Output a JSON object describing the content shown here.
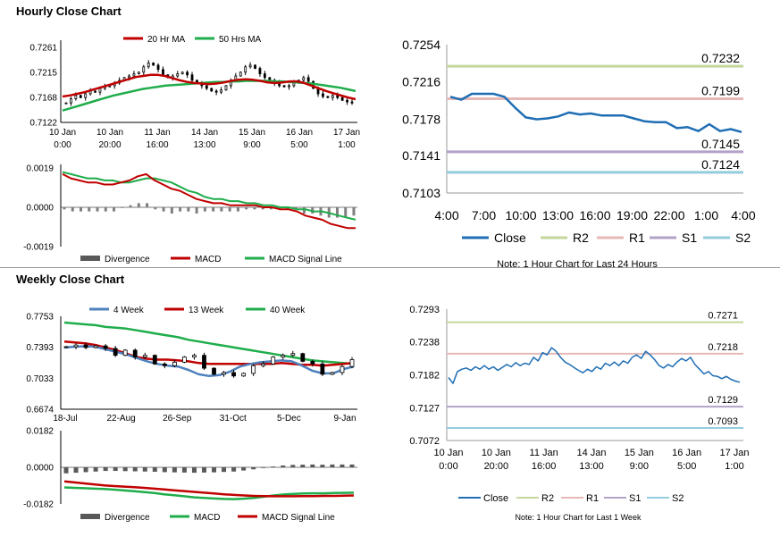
{
  "hourly": {
    "title": "Hourly Close Chart",
    "price_legend": [
      "20 Hr MA",
      "50 Hrs MA"
    ],
    "macd_legend": [
      "Divergence",
      "MACD",
      "MACD Signal Line"
    ],
    "macd_colors": [
      "#595959",
      "#c00000",
      "#1fad4b"
    ]
  },
  "weekly": {
    "title": "Weekly Close Chart",
    "price_legend": [
      "4 Week",
      "13 Week",
      "40 Week"
    ],
    "macd_legend": [
      "Divergence",
      "MACD",
      "MACD Signal Line"
    ],
    "macd_colors": [
      "#595959",
      "#1fad4b",
      "#c00000"
    ]
  },
  "colors": {
    "ma_red": "#c00000",
    "ma_green": "#1fad4b",
    "ma_blue": "#4f81bd",
    "close": "#1f6eb4",
    "r2": "#c3d69b",
    "r1": "#e6b9b8",
    "s1": "#b3a2c7",
    "s2": "#93cddd"
  },
  "chart_data": [
    {
      "id": "hourly_price",
      "type": "candlestick",
      "x_tick_labels": [
        [
          "10 Jan",
          "0:00"
        ],
        [
          "10 Jan",
          "20:00"
        ],
        [
          "11 Jan",
          "16:00"
        ],
        [
          "14 Jan",
          "13:00"
        ],
        [
          "15 Jan",
          "9:00"
        ],
        [
          "16 Jan",
          "5:00"
        ],
        [
          "17 Jan",
          "1:00"
        ]
      ],
      "y_ticks": [
        "0.7261",
        "0.7215",
        "0.7168",
        "0.7122"
      ],
      "ylim": [
        0.7122,
        0.7261
      ],
      "close": [
        0.7158,
        0.7166,
        0.7172,
        0.7168,
        0.7175,
        0.718,
        0.7178,
        0.7185,
        0.7188,
        0.719,
        0.7195,
        0.72,
        0.7205,
        0.7208,
        0.7212,
        0.7215,
        0.7225,
        0.7232,
        0.7228,
        0.722,
        0.721,
        0.7205,
        0.7208,
        0.7212,
        0.7215,
        0.721,
        0.72,
        0.7195,
        0.719,
        0.7185,
        0.718,
        0.7178,
        0.7182,
        0.719,
        0.72,
        0.7208,
        0.7215,
        0.7225,
        0.7228,
        0.7222,
        0.7212,
        0.7205,
        0.72,
        0.7195,
        0.719,
        0.7188,
        0.719,
        0.7195,
        0.72,
        0.7205,
        0.7198,
        0.7185,
        0.7175,
        0.717,
        0.7168,
        0.7172,
        0.7168,
        0.7163,
        0.716,
        0.7158
      ],
      "ma20": [
        0.717,
        0.7172,
        0.7175,
        0.7178,
        0.7182,
        0.7186,
        0.719,
        0.7194,
        0.7198,
        0.7202,
        0.7206,
        0.7208,
        0.721,
        0.721,
        0.7208,
        0.7204,
        0.72,
        0.7197,
        0.7195,
        0.7194,
        0.7193,
        0.7194,
        0.7196,
        0.7199,
        0.7201,
        0.7202,
        0.7201,
        0.7199,
        0.7196,
        0.7195,
        0.7196,
        0.7198,
        0.7198,
        0.7195,
        0.719,
        0.7185,
        0.718,
        0.7176,
        0.7172,
        0.7168,
        0.7165
      ],
      "ma50": [
        0.7144,
        0.7148,
        0.7152,
        0.7156,
        0.716,
        0.7164,
        0.7168,
        0.7172,
        0.7175,
        0.7178,
        0.7181,
        0.7184,
        0.7186,
        0.7188,
        0.719,
        0.7191,
        0.7192,
        0.7193,
        0.7194,
        0.7195,
        0.7196,
        0.7197,
        0.7197,
        0.7198,
        0.7198,
        0.7199,
        0.7199,
        0.7199,
        0.7199,
        0.7198,
        0.7198,
        0.7197,
        0.7196,
        0.7195,
        0.7194,
        0.7192,
        0.719,
        0.7188,
        0.7186,
        0.7183,
        0.718
      ]
    },
    {
      "id": "hourly_macd",
      "type": "line+bar",
      "y_ticks": [
        "0.0019",
        "0.0000",
        "-0.0019"
      ],
      "ylim": [
        -0.0019,
        0.0019
      ],
      "macd": [
        0.0016,
        0.0014,
        0.0013,
        0.0012,
        0.0012,
        0.0011,
        0.0011,
        0.0012,
        0.0013,
        0.0015,
        0.0016,
        0.0013,
        0.0011,
        0.0009,
        0.0008,
        0.0006,
        0.0004,
        0.0003,
        0.0002,
        0.0002,
        0.0001,
        0.0001,
        0.0001,
        0.0001,
        0.0,
        0.0,
        -0.0001,
        -0.0001,
        -0.0002,
        -0.0004,
        -0.0005,
        -0.0006,
        -0.0008,
        -0.0009,
        -0.001,
        -0.001
      ],
      "signal": [
        0.0017,
        0.0016,
        0.0015,
        0.0014,
        0.0014,
        0.0013,
        0.0013,
        0.0012,
        0.0012,
        0.0013,
        0.0014,
        0.0014,
        0.0013,
        0.0012,
        0.001,
        0.0008,
        0.0007,
        0.0005,
        0.0004,
        0.0004,
        0.0003,
        0.0003,
        0.0002,
        0.0002,
        0.0001,
        0.0001,
        0.0,
        0.0,
        -0.0001,
        -0.0001,
        -0.0002,
        -0.0002,
        -0.0003,
        -0.0004,
        -0.0005,
        -0.0006
      ],
      "divergence": [
        -0.0001,
        -0.0002,
        -0.0002,
        -0.0002,
        -0.0002,
        -0.0002,
        -0.0002,
        0.0,
        0.0001,
        0.0002,
        0.0002,
        -0.0001,
        -0.0002,
        -0.0003,
        -0.0002,
        -0.0002,
        -0.0003,
        -0.0002,
        -0.0002,
        -0.0002,
        -0.0002,
        -0.0002,
        -0.0001,
        -0.0001,
        -0.0001,
        -0.0001,
        -0.0001,
        -0.0001,
        -0.0001,
        -0.0003,
        -0.0003,
        -0.0004,
        -0.0005,
        -0.0005,
        -0.0005,
        -0.0004
      ]
    },
    {
      "id": "hourly_24h",
      "type": "line",
      "x_ticks": [
        "4:00",
        "7:00",
        "10:00",
        "13:00",
        "16:00",
        "19:00",
        "22:00",
        "1:00",
        "4:00"
      ],
      "y_ticks": [
        "0.7254",
        "0.7216",
        "0.7178",
        "0.7141",
        "0.7103"
      ],
      "ylim": [
        0.7103,
        0.7254
      ],
      "legend": [
        "Close",
        "R2",
        "R1",
        "S1",
        "S2"
      ],
      "levels": {
        "R2": "0.7232",
        "R1": "0.7199",
        "S1": "0.7145",
        "S2": "0.7124"
      },
      "close": [
        0.7201,
        0.7198,
        0.7204,
        0.7204,
        0.7204,
        0.7201,
        0.719,
        0.718,
        0.7178,
        0.7179,
        0.7181,
        0.7185,
        0.7183,
        0.7184,
        0.7182,
        0.7182,
        0.7182,
        0.7179,
        0.7176,
        0.7175,
        0.7175,
        0.7169,
        0.717,
        0.7166,
        0.7173,
        0.7166,
        0.7168,
        0.7165
      ],
      "note": "Note: 1 Hour Chart for Last 24 Hours"
    },
    {
      "id": "weekly_price",
      "type": "candlestick",
      "x_ticks": [
        "18-Jul",
        "22-Aug",
        "26-Sep",
        "31-Oct",
        "5-Dec",
        "9-Jan"
      ],
      "y_ticks": [
        "0.7753",
        "0.7393",
        "0.7033",
        "0.6674"
      ],
      "ylim": [
        0.6674,
        0.7753
      ],
      "legend": [
        "4 Week",
        "13 Week",
        "40 Week"
      ],
      "close": [
        0.74,
        0.742,
        0.739,
        0.741,
        0.738,
        0.73,
        0.736,
        0.728,
        0.73,
        0.72,
        0.718,
        0.722,
        0.728,
        0.73,
        0.715,
        0.708,
        0.71,
        0.706,
        0.709,
        0.718,
        0.72,
        0.728,
        0.73,
        0.732,
        0.723,
        0.72,
        0.708,
        0.71,
        0.717,
        0.725
      ],
      "w4": [
        0.739,
        0.74,
        0.7405,
        0.74,
        0.737,
        0.734,
        0.731,
        0.727,
        0.723,
        0.72,
        0.718,
        0.717,
        0.713,
        0.708,
        0.706,
        0.707,
        0.711,
        0.717,
        0.72,
        0.722,
        0.723,
        0.724,
        0.723,
        0.718,
        0.712,
        0.709,
        0.709,
        0.714,
        0.717
      ],
      "w13": [
        0.746,
        0.745,
        0.744,
        0.742,
        0.739,
        0.736,
        0.732,
        0.728,
        0.726,
        0.725,
        0.725,
        0.724,
        0.723,
        0.721,
        0.72,
        0.72,
        0.72,
        0.72,
        0.72,
        0.72,
        0.72,
        0.721,
        0.72,
        0.719,
        0.719,
        0.718,
        0.719,
        0.72,
        0.721
      ],
      "w40": [
        0.768,
        0.767,
        0.766,
        0.765,
        0.763,
        0.762,
        0.761,
        0.759,
        0.757,
        0.755,
        0.753,
        0.751,
        0.748,
        0.746,
        0.744,
        0.742,
        0.74,
        0.738,
        0.736,
        0.734,
        0.732,
        0.73,
        0.728,
        0.726,
        0.724,
        0.723,
        0.722,
        0.721,
        0.72
      ]
    },
    {
      "id": "weekly_macd",
      "type": "line+bar",
      "y_ticks": [
        "0.0182",
        "0.0000",
        "-0.0182"
      ],
      "ylim": [
        -0.0182,
        0.0182
      ],
      "macd": [
        -0.01,
        -0.0102,
        -0.0104,
        -0.0106,
        -0.0108,
        -0.0111,
        -0.0115,
        -0.0119,
        -0.0123,
        -0.0128,
        -0.0134,
        -0.0139,
        -0.0144,
        -0.0149,
        -0.0152,
        -0.0155,
        -0.0157,
        -0.0158,
        -0.0156,
        -0.0152,
        -0.0146,
        -0.014,
        -0.0135,
        -0.0132,
        -0.013,
        -0.0129,
        -0.0129,
        -0.0128,
        -0.0127,
        -0.0126
      ],
      "signal": [
        -0.007,
        -0.0075,
        -0.008,
        -0.0085,
        -0.009,
        -0.0093,
        -0.0096,
        -0.0099,
        -0.0102,
        -0.0106,
        -0.011,
        -0.0114,
        -0.0118,
        -0.0122,
        -0.0126,
        -0.013,
        -0.0134,
        -0.0137,
        -0.014,
        -0.0142,
        -0.0143,
        -0.0144,
        -0.0144,
        -0.0144,
        -0.0143,
        -0.0143,
        -0.0142,
        -0.0142,
        -0.0141,
        -0.014
      ],
      "divergence": [
        -0.003,
        -0.0027,
        -0.0024,
        -0.0021,
        -0.0018,
        -0.0018,
        -0.0019,
        -0.002,
        -0.0021,
        -0.0022,
        -0.0024,
        -0.0025,
        -0.0026,
        -0.0027,
        -0.0026,
        -0.0025,
        -0.0023,
        -0.0021,
        -0.0016,
        -0.001,
        -0.0003,
        0.0004,
        0.0009,
        0.0012,
        0.0013,
        0.0014,
        0.0013,
        0.0014,
        0.0014,
        0.0014
      ]
    },
    {
      "id": "weekly_hourly",
      "type": "line",
      "x_tick_labels": [
        [
          "10 Jan",
          "0:00"
        ],
        [
          "10 Jan",
          "20:00"
        ],
        [
          "11 Jan",
          "16:00"
        ],
        [
          "14 Jan",
          "13:00"
        ],
        [
          "15 Jan",
          "9:00"
        ],
        [
          "16 Jan",
          "5:00"
        ],
        [
          "17 Jan",
          "1:00"
        ]
      ],
      "y_ticks": [
        "0.7293",
        "0.7238",
        "0.7182",
        "0.7127",
        "0.7072"
      ],
      "ylim": [
        0.7072,
        0.7293
      ],
      "legend": [
        "Close",
        "R2",
        "R1",
        "S1",
        "S2"
      ],
      "levels": {
        "R2": "0.7271",
        "R1": "0.7218",
        "S1": "0.7129",
        "S2": "0.7093"
      },
      "close": [
        0.7178,
        0.7168,
        0.7188,
        0.7192,
        0.7194,
        0.719,
        0.7196,
        0.7192,
        0.7198,
        0.7192,
        0.7196,
        0.719,
        0.7195,
        0.72,
        0.7196,
        0.7203,
        0.7198,
        0.7202,
        0.72,
        0.7212,
        0.7206,
        0.722,
        0.7216,
        0.7228,
        0.7222,
        0.7212,
        0.7204,
        0.72,
        0.7195,
        0.719,
        0.7186,
        0.7192,
        0.7188,
        0.7196,
        0.7192,
        0.7202,
        0.7198,
        0.7204,
        0.7198,
        0.7206,
        0.7202,
        0.7212,
        0.7216,
        0.721,
        0.7222,
        0.7216,
        0.7208,
        0.7198,
        0.7194,
        0.72,
        0.7196,
        0.7204,
        0.721,
        0.7206,
        0.7212,
        0.72,
        0.7192,
        0.7184,
        0.7188,
        0.7181,
        0.718,
        0.7176,
        0.718,
        0.7175,
        0.7172,
        0.717
      ],
      "note": "Note: 1 Hour Chart for Last 1 Week"
    }
  ]
}
